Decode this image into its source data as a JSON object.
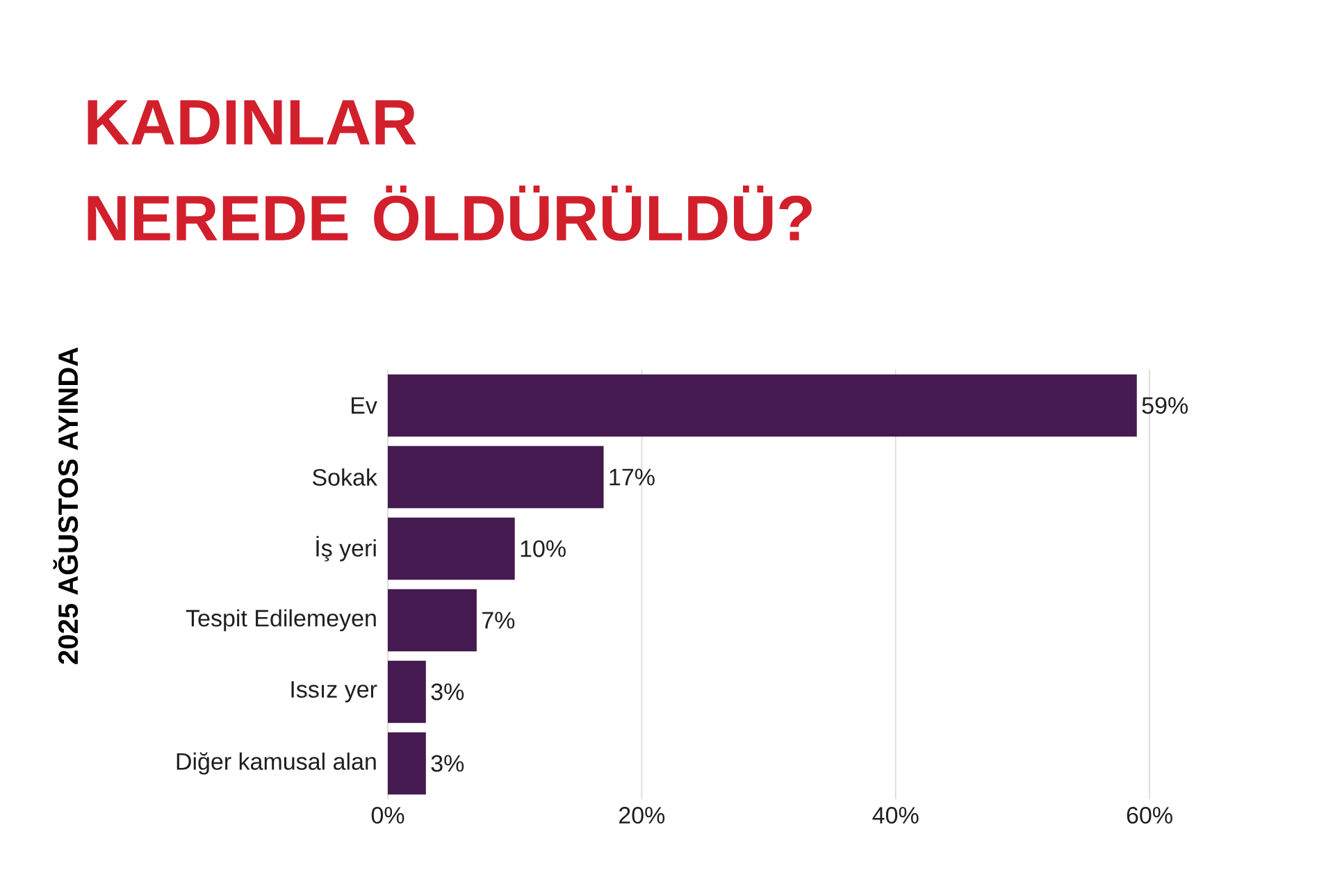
{
  "chart_data": {
    "type": "bar",
    "orientation": "horizontal",
    "title": "KADINLAR NEREDE ÖLDÜRÜLDÜ?",
    "ylabel": "2025 AĞUSTOS AYINDA",
    "categories": [
      "Ev",
      "Sokak",
      "İş yeri",
      "Tespit Edilemeyen",
      "Issız yer",
      "Diğer kamusal alan"
    ],
    "values": [
      59,
      17,
      10,
      7,
      3,
      3
    ],
    "value_labels": [
      "59%",
      "17%",
      "10%",
      "7%",
      "3%",
      "3%"
    ],
    "color": "#451a50",
    "xlim": [
      0,
      60
    ],
    "xticks": [
      {
        "value": 0,
        "label": "0%"
      },
      {
        "value": 20,
        "label": "20%"
      },
      {
        "value": 40,
        "label": "40%"
      },
      {
        "value": 60,
        "label": "60%"
      }
    ],
    "grid": "x"
  }
}
